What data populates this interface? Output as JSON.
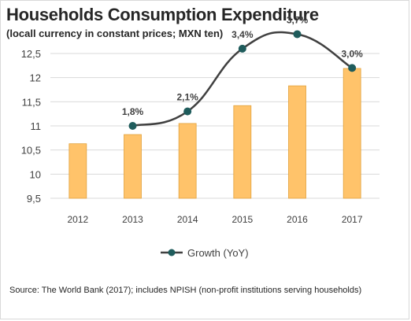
{
  "title": "Households Consumption Expenditure",
  "subtitle": "(locall currency in constant prices; MXN ten)",
  "source": "Source: The World Bank (2017); includes NPISH (non-profit institutions serving households)",
  "colors": {
    "bar_fill": "#ffc36a",
    "bar_stroke": "#e2a23c",
    "line": "#404040",
    "marker": "#1f5c5c",
    "grid": "#d9d9d9",
    "text": "#404040"
  },
  "chart_data": {
    "type": "bar",
    "categories": [
      "2012",
      "2013",
      "2014",
      "2015",
      "2016",
      "2017"
    ],
    "values": [
      10.63,
      10.82,
      11.05,
      11.42,
      11.83,
      12.19
    ],
    "ylim": [
      9.5,
      12.5
    ],
    "yticks": [
      "9,5",
      "10",
      "10,5",
      "11",
      "11,5",
      "12",
      "12,5"
    ],
    "ytick_values": [
      9.5,
      10,
      10.5,
      11,
      11.5,
      12,
      12.5
    ],
    "grid": true,
    "legend": "bottom-center",
    "overlay": {
      "type": "line",
      "name": "Growth (YoY)",
      "x": [
        "2013",
        "2014",
        "2015",
        "2016",
        "2017"
      ],
      "values": [
        1.8,
        2.1,
        3.4,
        3.7,
        3.0
      ],
      "labels": [
        "1,8%",
        "2,1%",
        "3,4%",
        "3,7%",
        "3,0%"
      ]
    }
  }
}
